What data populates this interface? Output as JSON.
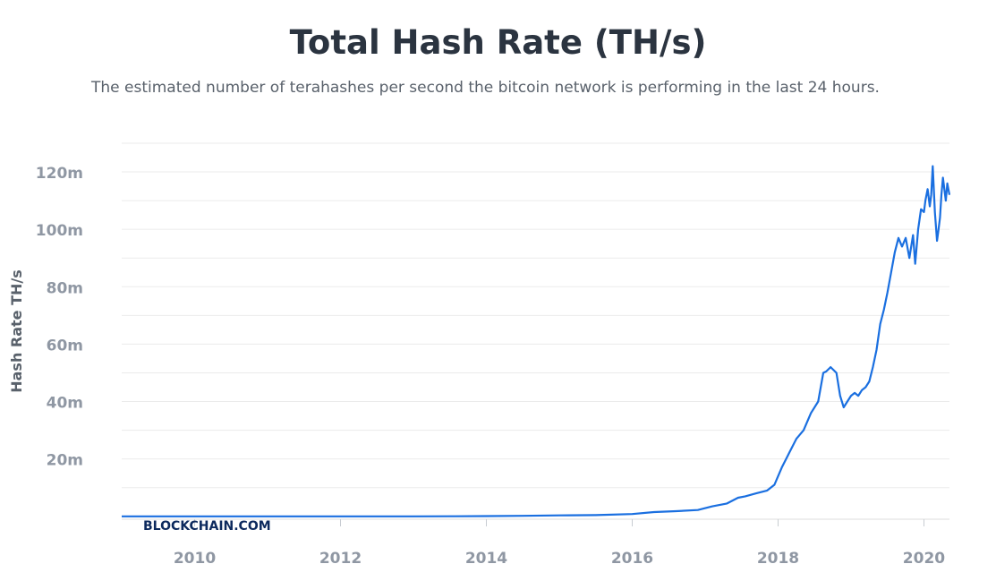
{
  "header": {
    "title": "Total Hash Rate (TH/s)",
    "subtitle": "The estimated number of terahashes per second the bitcoin network is performing in the last 24 hours."
  },
  "watermark": "BLOCKCHAIN.COM",
  "colors": {
    "line": "#1a6fe0",
    "grid": "#ebebeb",
    "tick": "#8f97a3",
    "title": "#2b3440",
    "watermark": "#0d2a5e"
  },
  "chart_data": {
    "type": "line",
    "title": "Total Hash Rate (TH/s)",
    "subtitle": "The estimated number of terahashes per second the bitcoin network is performing in the last 24 hours.",
    "ylabel": "Hash Rate TH/s",
    "xlabel": "",
    "xlim": [
      2009.0,
      2020.35
    ],
    "ylim": [
      -1,
      130
    ],
    "grid": true,
    "x_ticks": [
      2010,
      2012,
      2014,
      2016,
      2018,
      2020
    ],
    "x_tick_labels": [
      "2010",
      "2012",
      "2014",
      "2016",
      "2018",
      "2020"
    ],
    "y_ticks": [
      20,
      40,
      60,
      80,
      100,
      120
    ],
    "y_tick_labels": [
      "20m",
      "40m",
      "60m",
      "80m",
      "100m",
      "120m"
    ],
    "series": [
      {
        "name": "",
        "x": [
          2009.0,
          2010.0,
          2011.0,
          2012.0,
          2013.0,
          2013.5,
          2014.0,
          2014.5,
          2015.0,
          2015.5,
          2016.0,
          2016.3,
          2016.6,
          2016.9,
          2017.1,
          2017.3,
          2017.45,
          2017.55,
          2017.7,
          2017.85,
          2017.95,
          2018.05,
          2018.15,
          2018.25,
          2018.35,
          2018.45,
          2018.55,
          2018.62,
          2018.66,
          2018.72,
          2018.8,
          2018.85,
          2018.9,
          2018.95,
          2019.0,
          2019.05,
          2019.1,
          2019.15,
          2019.2,
          2019.25,
          2019.3,
          2019.35,
          2019.4,
          2019.45,
          2019.5,
          2019.55,
          2019.6,
          2019.65,
          2019.7,
          2019.75,
          2019.8,
          2019.85,
          2019.88,
          2019.92,
          2019.96,
          2020.0,
          2020.02,
          2020.05,
          2020.08,
          2020.1,
          2020.12,
          2020.15,
          2020.18,
          2020.2,
          2020.22,
          2020.24,
          2020.26,
          2020.28,
          2020.3,
          2020.32,
          2020.35
        ],
        "values": [
          0,
          0,
          0,
          0,
          0,
          0.02,
          0.1,
          0.2,
          0.35,
          0.45,
          0.8,
          1.5,
          1.8,
          2.2,
          3.5,
          4.5,
          6.5,
          7,
          8,
          9,
          11,
          17,
          22,
          27,
          30,
          36,
          40,
          50,
          50.5,
          52,
          50,
          42,
          38,
          40,
          42,
          43,
          42,
          44,
          45,
          47,
          52,
          58,
          67,
          72,
          78,
          85,
          92,
          97,
          94,
          97,
          90,
          98,
          88,
          100,
          107,
          106,
          110,
          114,
          108,
          112,
          122,
          106,
          96,
          100,
          104,
          112,
          118,
          114,
          110,
          116,
          112
        ]
      }
    ]
  }
}
